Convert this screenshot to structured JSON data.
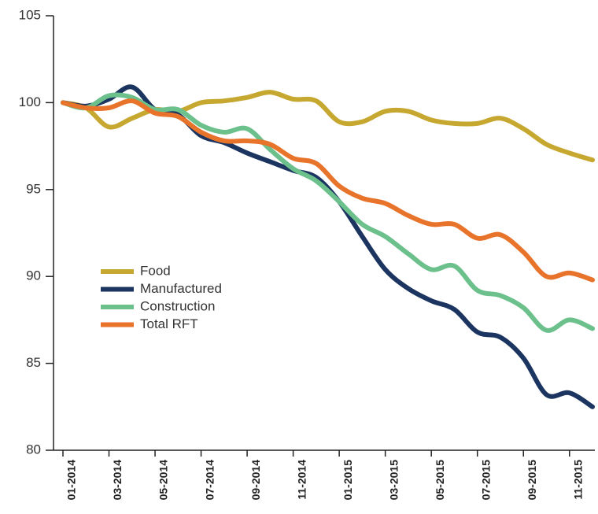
{
  "chart_data": {
    "type": "line",
    "categories": [
      "01-2014",
      null,
      "03-2014",
      null,
      "05-2014",
      null,
      "07-2014",
      null,
      "09-2014",
      null,
      "11-2014",
      null,
      "01-2015",
      null,
      "03-2015",
      null,
      "05-2015",
      null,
      "07-2015",
      null,
      "09-2015",
      null,
      "11-2015",
      null
    ],
    "series": [
      {
        "name": "Food",
        "color": "#c6a72f",
        "values": [
          100,
          99.7,
          98.6,
          99.1,
          99.6,
          99.5,
          100.0,
          100.1,
          100.3,
          100.6,
          100.2,
          100.1,
          98.9,
          98.9,
          99.5,
          99.5,
          99.0,
          98.8,
          98.8,
          99.1,
          98.5,
          97.6,
          97.1,
          96.7
        ]
      },
      {
        "name": "Manufactured",
        "color": "#1b3560",
        "values": [
          100,
          99.8,
          100.2,
          100.9,
          99.6,
          99.3,
          98.1,
          97.7,
          97.1,
          96.6,
          96.1,
          95.7,
          94.3,
          92.3,
          90.4,
          89.3,
          88.6,
          88.1,
          86.8,
          86.5,
          85.3,
          83.2,
          83.3,
          82.5
        ]
      },
      {
        "name": "Construction",
        "color": "#6cc08b",
        "values": [
          100,
          99.7,
          100.4,
          100.3,
          99.6,
          99.6,
          98.7,
          98.3,
          98.5,
          97.3,
          96.2,
          95.5,
          94.3,
          93.0,
          92.3,
          91.3,
          90.4,
          90.6,
          89.2,
          88.9,
          88.2,
          86.9,
          87.5,
          87.0
        ]
      },
      {
        "name": "Total RFT",
        "color": "#e8732a",
        "values": [
          100,
          99.7,
          99.7,
          100.1,
          99.4,
          99.2,
          98.3,
          97.8,
          97.8,
          97.6,
          96.8,
          96.5,
          95.2,
          94.5,
          94.2,
          93.5,
          93.0,
          93.0,
          92.2,
          92.4,
          91.4,
          90.0,
          90.2,
          89.8
        ]
      }
    ],
    "ylim": [
      80,
      105
    ],
    "yticks": [
      80,
      85,
      90,
      95,
      100,
      105
    ],
    "grid": false
  }
}
